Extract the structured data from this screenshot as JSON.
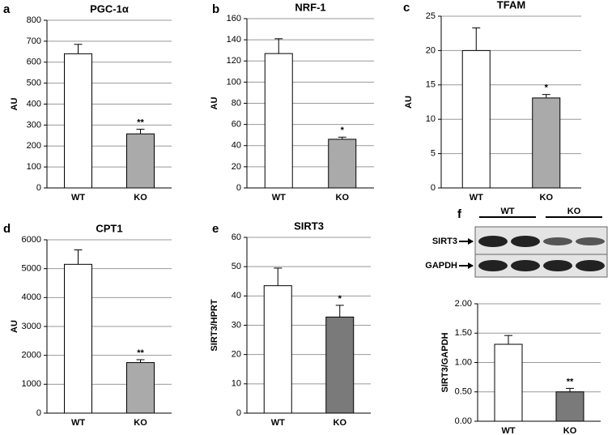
{
  "chart_data": [
    {
      "type": "bar",
      "panel": "a",
      "title": "PGC-1α",
      "ylabel": "AU",
      "categories": [
        "WT",
        "KO"
      ],
      "values": [
        640,
        258
      ],
      "errors": [
        45,
        22
      ],
      "colors": [
        "#ffffff",
        "#aaaaaa"
      ],
      "annotation": "**",
      "ylim": [
        0,
        800
      ],
      "yticks": [
        0,
        100,
        200,
        300,
        400,
        500,
        600,
        700,
        800
      ],
      "grid": true
    },
    {
      "type": "bar",
      "panel": "b",
      "title": "NRF-1",
      "ylabel": "AU",
      "categories": [
        "WT",
        "KO"
      ],
      "values": [
        127,
        46
      ],
      "errors": [
        14,
        2
      ],
      "colors": [
        "#ffffff",
        "#aaaaaa"
      ],
      "annotation": "*",
      "ylim": [
        0,
        160
      ],
      "yticks": [
        0,
        20,
        40,
        60,
        80,
        100,
        120,
        140,
        160
      ],
      "grid": true
    },
    {
      "type": "bar",
      "panel": "c",
      "title": "TFAM",
      "ylabel": "AU",
      "categories": [
        "WT",
        "KO"
      ],
      "values": [
        20,
        13.1
      ],
      "errors": [
        3.3,
        0.5
      ],
      "colors": [
        "#ffffff",
        "#aaaaaa"
      ],
      "annotation": "*",
      "ylim": [
        0,
        25
      ],
      "yticks": [
        0,
        5,
        10,
        15,
        20,
        25
      ],
      "grid": true
    },
    {
      "type": "bar",
      "panel": "d",
      "title": "CPT1",
      "ylabel": "AU",
      "categories": [
        "WT",
        "KO"
      ],
      "values": [
        5150,
        1750
      ],
      "errors": [
        500,
        100
      ],
      "colors": [
        "#ffffff",
        "#aaaaaa"
      ],
      "annotation": "**",
      "ylim": [
        0,
        6000
      ],
      "yticks": [
        0,
        1000,
        2000,
        3000,
        4000,
        5000,
        6000
      ],
      "grid": true
    },
    {
      "type": "bar",
      "panel": "e",
      "title": "SIRT3",
      "ylabel": "SIRT3/HPRT",
      "categories": [
        "WT",
        "KO"
      ],
      "values": [
        43.5,
        32.8
      ],
      "errors": [
        6,
        4
      ],
      "colors": [
        "#ffffff",
        "#7a7a7a"
      ],
      "annotation": "*",
      "ylim": [
        0,
        60
      ],
      "yticks": [
        0,
        10,
        20,
        30,
        40,
        50,
        60
      ],
      "grid": true
    },
    {
      "type": "bar",
      "panel": "f",
      "ylabel": "SIRT3/GAPDH",
      "categories": [
        "WT",
        "KO"
      ],
      "values": [
        1.31,
        0.5
      ],
      "errors": [
        0.15,
        0.06
      ],
      "colors": [
        "#ffffff",
        "#7a7a7a"
      ],
      "annotation": "**",
      "ylim": [
        0,
        2
      ],
      "yticks": [
        {
          "value": 0,
          "label": "0.00"
        },
        {
          "value": 0.5,
          "label": "0.50"
        },
        {
          "value": 1,
          "label": "1.00"
        },
        {
          "value": 1.5,
          "label": "1.50"
        },
        {
          "value": 2,
          "label": "2.00"
        }
      ],
      "grid": true,
      "blot": {
        "groups": [
          "WT",
          "KO"
        ],
        "rows": [
          "SIRT3",
          "GAPDH"
        ]
      }
    }
  ]
}
